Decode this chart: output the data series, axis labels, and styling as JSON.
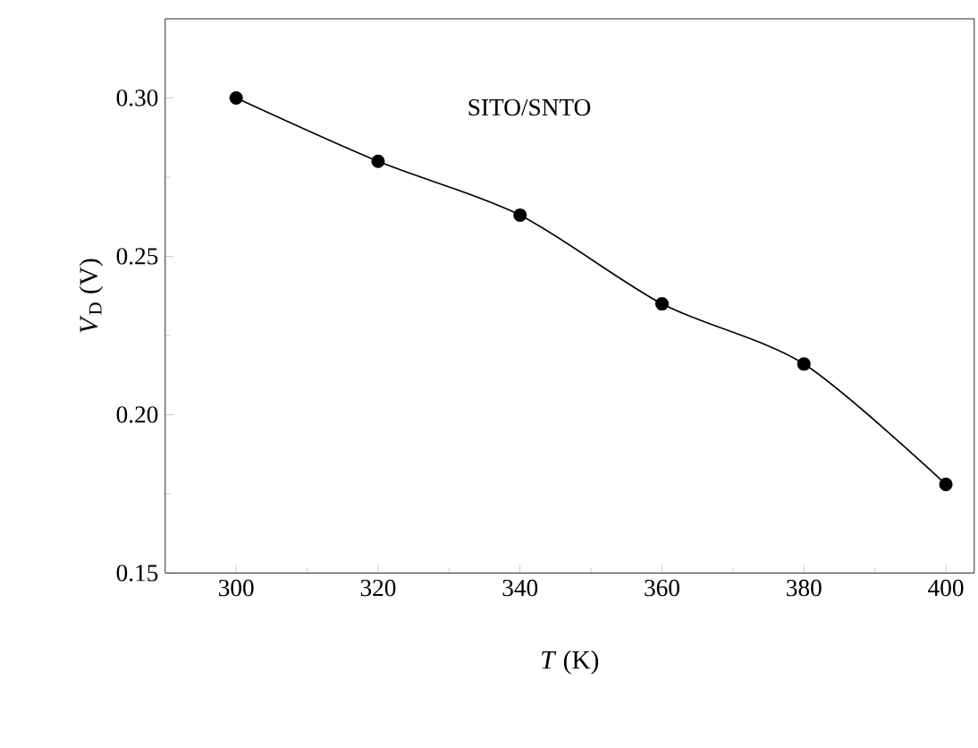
{
  "chart_data": {
    "type": "line",
    "xlabel": "*T* (K)",
    "ylabel": "*V*$_{D}$ (V)",
    "x": [
      300,
      320,
      340,
      360,
      380,
      400
    ],
    "series": [
      {
        "color": "#000000",
        "values": [
          0.3,
          0.28,
          0.263,
          0.235,
          0.216,
          0.178
        ]
      }
    ],
    "xlim": [
      290,
      404
    ],
    "xticks": [
      300,
      320,
      340,
      360,
      380,
      400
    ],
    "ylim": [
      0.15,
      0.325
    ],
    "yticks": [
      {
        "value": 0.15,
        "label": "0.15"
      },
      {
        "value": 0.2,
        "label": "0.20"
      },
      {
        "value": 0.25,
        "label": "0.25"
      },
      {
        "value": 0.3,
        "label": "0.30"
      }
    ],
    "marker": "circle",
    "line_style": "solid",
    "grid": false,
    "annotations": [
      "SITO/SNTO"
    ]
  }
}
